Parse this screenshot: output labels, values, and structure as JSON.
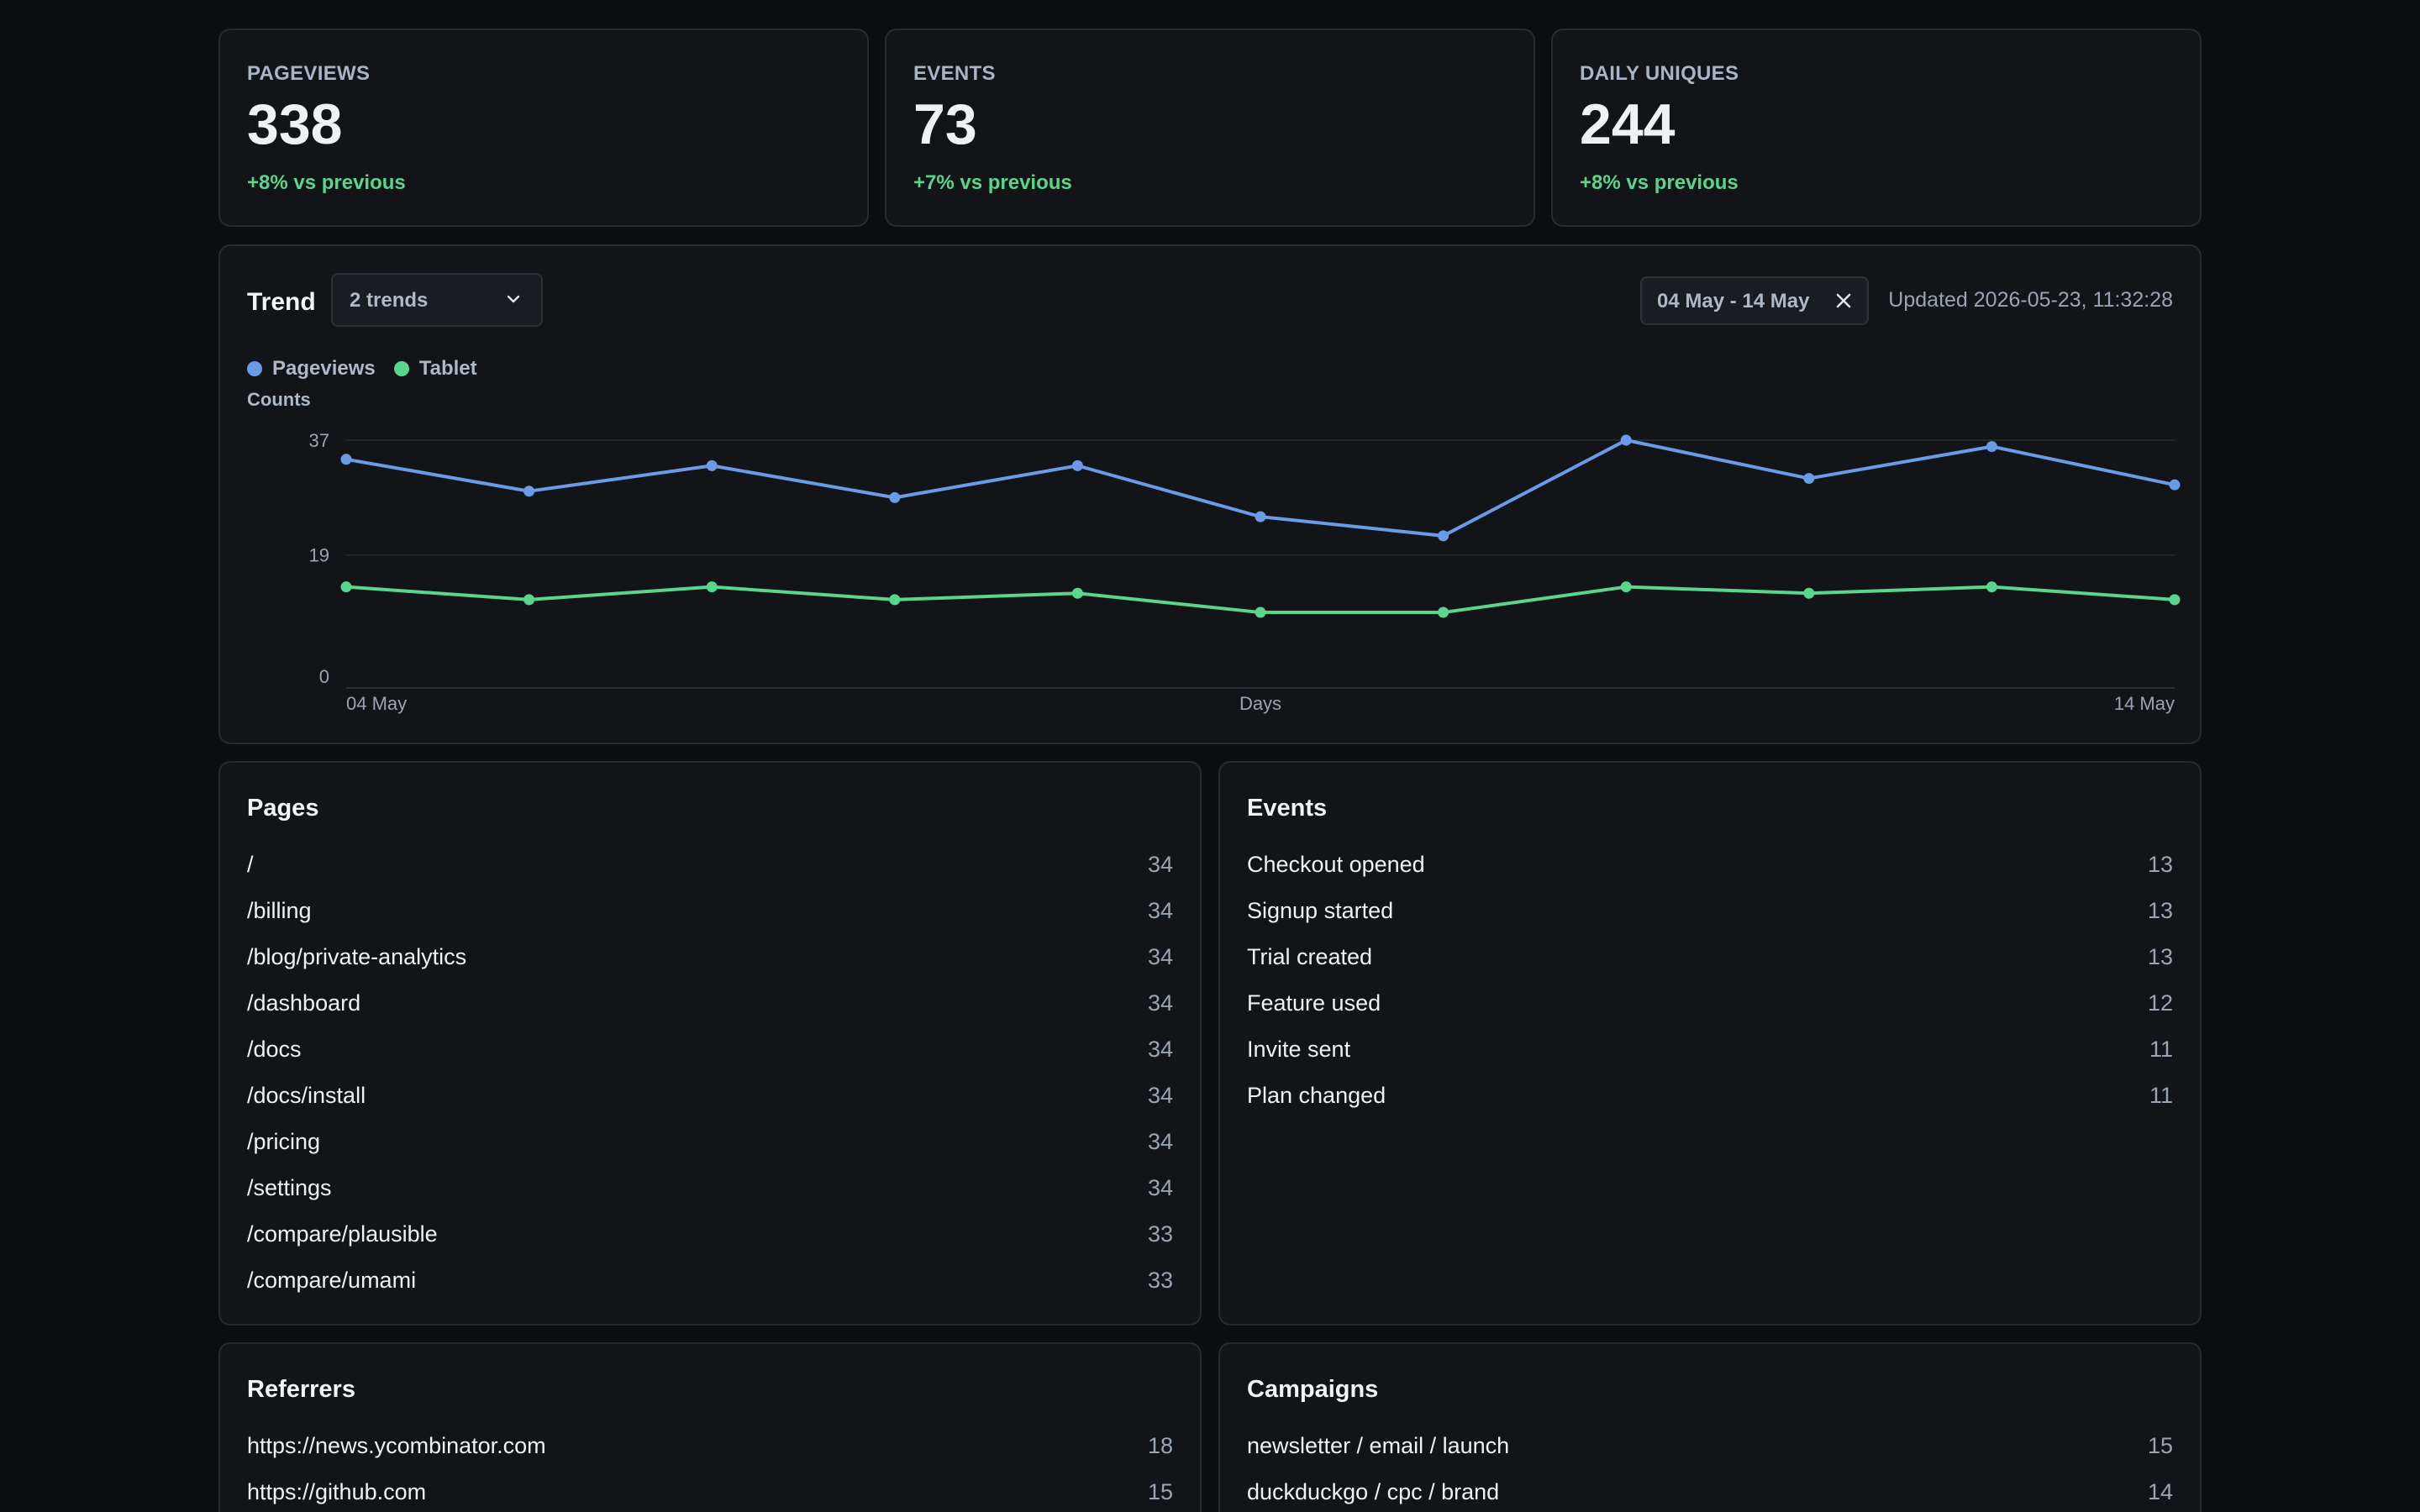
{
  "stats": [
    {
      "label": "PAGEVIEWS",
      "value": "338",
      "delta": "+8% vs previous"
    },
    {
      "label": "EVENTS",
      "value": "73",
      "delta": "+7% vs previous"
    },
    {
      "label": "DAILY UNIQUES",
      "value": "244",
      "delta": "+8% vs previous"
    }
  ],
  "trend": {
    "title": "Trend",
    "select_label": "2 trends",
    "range_label": "04 May - 14 May",
    "updated": "Updated 2026-05-23, 11:32:28"
  },
  "colors": {
    "pageviews": "#6a9be6",
    "tablet": "#5ad68c"
  },
  "chart_data": {
    "type": "line",
    "title": "",
    "ylabel": "Counts",
    "xlabel": "Days",
    "x_tick_labels": [
      "04 May",
      "14 May"
    ],
    "y_ticks": [
      0,
      19,
      37
    ],
    "ylim": [
      0,
      37
    ],
    "x": [
      "04 May",
      "05 May",
      "06 May",
      "07 May",
      "08 May",
      "09 May",
      "10 May",
      "11 May",
      "12 May",
      "13 May",
      "14 May"
    ],
    "grid": true,
    "legend": "top-left",
    "series": [
      {
        "name": "Pageviews",
        "color": "#6a9be6",
        "values": [
          34,
          29,
          33,
          28,
          33,
          25,
          22,
          37,
          31,
          36,
          30
        ]
      },
      {
        "name": "Tablet",
        "color": "#5ad68c",
        "values": [
          14,
          12,
          14,
          12,
          13,
          10,
          10,
          14,
          13,
          14,
          12
        ]
      }
    ]
  },
  "pages": {
    "title": "Pages",
    "rows": [
      {
        "label": "/",
        "count": "34"
      },
      {
        "label": "/billing",
        "count": "34"
      },
      {
        "label": "/blog/private-analytics",
        "count": "34"
      },
      {
        "label": "/dashboard",
        "count": "34"
      },
      {
        "label": "/docs",
        "count": "34"
      },
      {
        "label": "/docs/install",
        "count": "34"
      },
      {
        "label": "/pricing",
        "count": "34"
      },
      {
        "label": "/settings",
        "count": "34"
      },
      {
        "label": "/compare/plausible",
        "count": "33"
      },
      {
        "label": "/compare/umami",
        "count": "33"
      }
    ]
  },
  "events": {
    "title": "Events",
    "rows": [
      {
        "label": "Checkout opened",
        "count": "13"
      },
      {
        "label": "Signup started",
        "count": "13"
      },
      {
        "label": "Trial created",
        "count": "13"
      },
      {
        "label": "Feature used",
        "count": "12"
      },
      {
        "label": "Invite sent",
        "count": "11"
      },
      {
        "label": "Plan changed",
        "count": "11"
      }
    ]
  },
  "referrers": {
    "title": "Referrers",
    "rows": [
      {
        "label": "https://news.ycombinator.com",
        "count": "18"
      },
      {
        "label": "https://github.com",
        "count": "15"
      }
    ]
  },
  "campaigns": {
    "title": "Campaigns",
    "rows": [
      {
        "label": "newsletter / email / launch",
        "count": "15"
      },
      {
        "label": "duckduckgo / cpc / brand",
        "count": "14"
      }
    ]
  }
}
